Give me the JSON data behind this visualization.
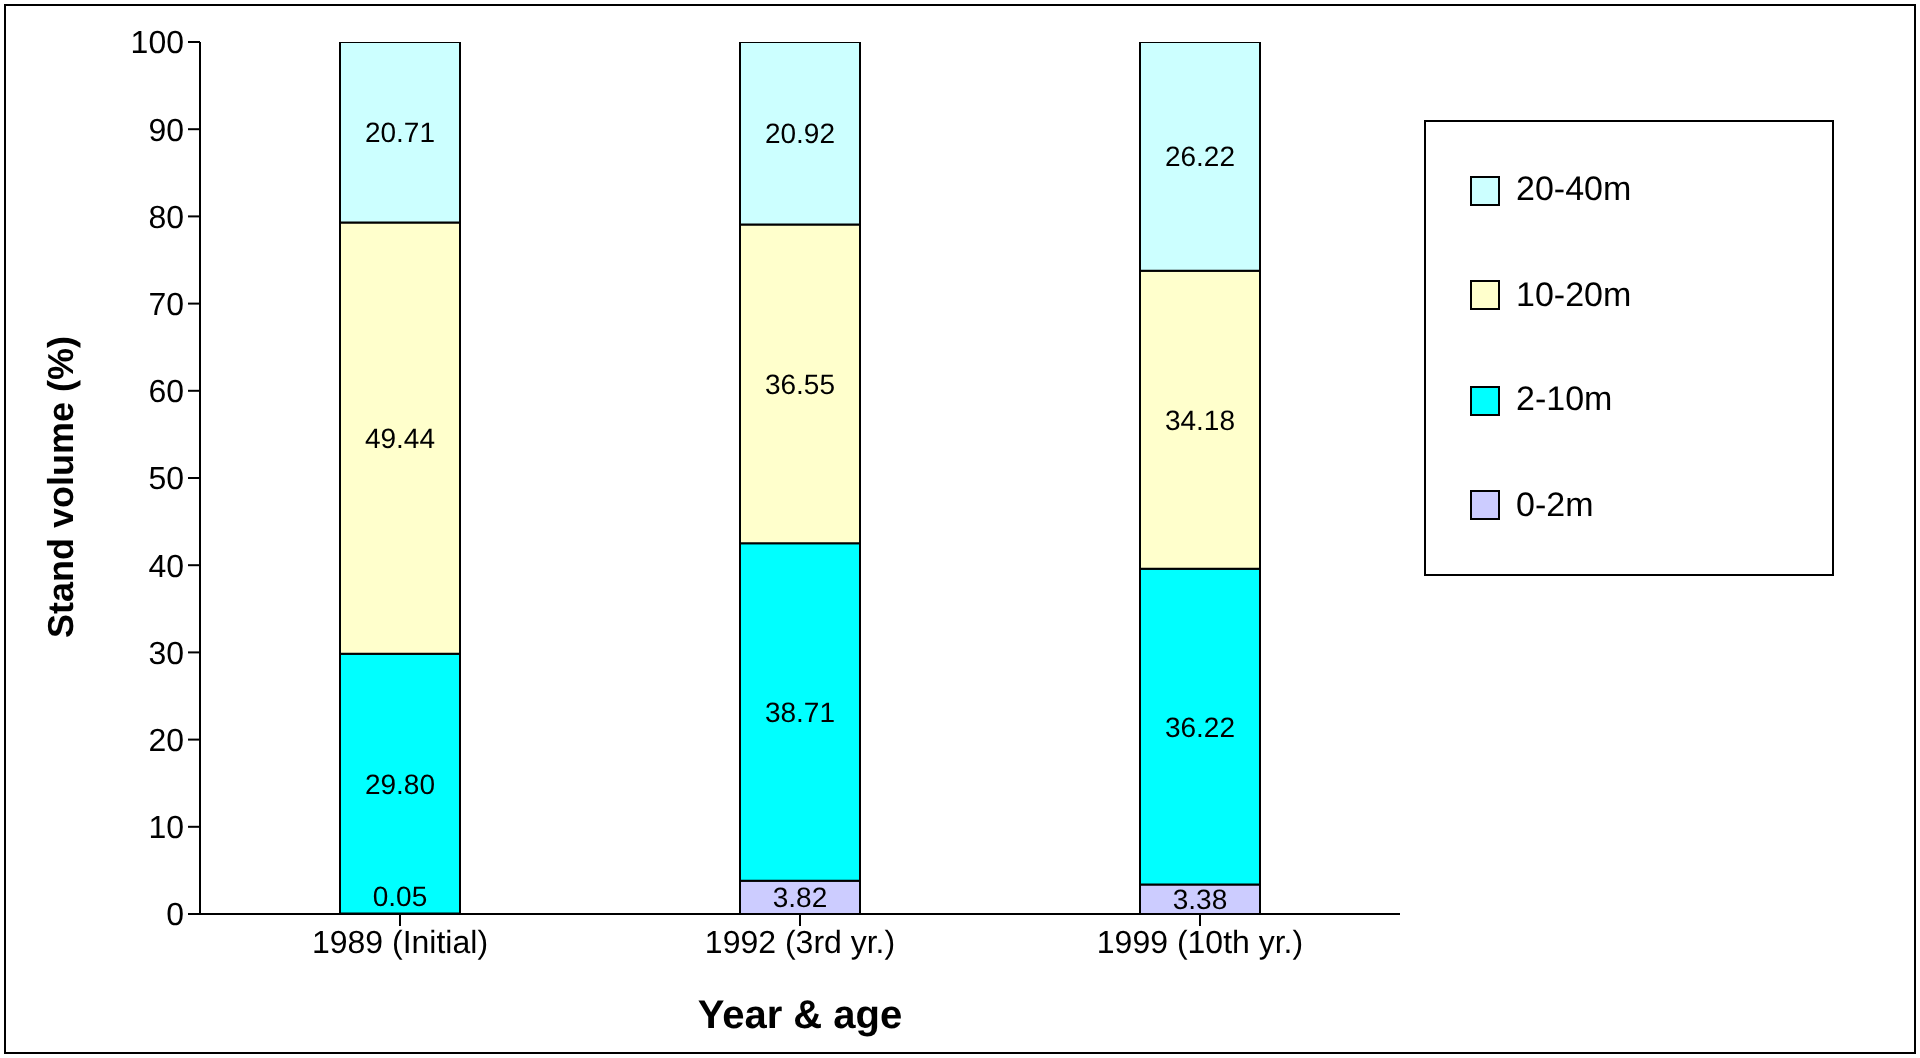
{
  "chart_data": {
    "type": "bar",
    "stacked": true,
    "categories": [
      "1989 (Initial)",
      "1992 (3rd yr.)",
      "1999 (10th yr.)"
    ],
    "xlabel": "Year & age",
    "ylabel": "Stand volume (%)",
    "ylim": [
      0,
      100
    ],
    "yticks": [
      0,
      10,
      20,
      30,
      40,
      50,
      60,
      70,
      80,
      90,
      100
    ],
    "grid": false,
    "legend": "right",
    "series": [
      {
        "name": "0-2m",
        "color": "#ccccff",
        "values": [
          0.05,
          3.82,
          3.38
        ],
        "value_labels": [
          "0.05",
          "3.82",
          "3.38"
        ]
      },
      {
        "name": "2-10m",
        "color": "#00ffff",
        "values": [
          29.8,
          38.71,
          36.22
        ],
        "value_labels": [
          "29.80",
          "38.71",
          "36.22"
        ]
      },
      {
        "name": "10-20m",
        "color": "#ffffcc",
        "values": [
          49.44,
          36.55,
          34.18
        ],
        "value_labels": [
          "49.44",
          "36.55",
          "34.18"
        ]
      },
      {
        "name": "20-40m",
        "color": "#ccffff",
        "values": [
          20.71,
          20.92,
          26.22
        ],
        "value_labels": [
          "20.71",
          "20.92",
          "26.22"
        ]
      }
    ]
  }
}
